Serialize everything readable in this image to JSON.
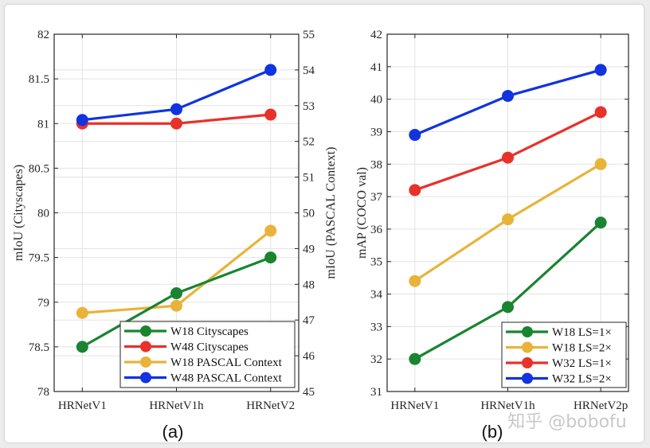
{
  "chart_data": [
    {
      "type": "line",
      "caption": "(a)",
      "categories": [
        "HRNetV1",
        "HRNetV1h",
        "HRNetV2"
      ],
      "ylabel": "mIoU (Cityscapes)",
      "ylim": [
        78,
        82
      ],
      "yticks": [
        "78",
        "78.5",
        "79",
        "79.5",
        "80",
        "80.5",
        "81",
        "81.5",
        "82"
      ],
      "yticks_values": [
        78,
        78.5,
        79,
        79.5,
        80,
        80.5,
        81,
        81.5,
        82
      ],
      "y2label": "mIoU (PASCAL Context)",
      "y2lim": [
        45,
        55
      ],
      "y2ticks": [
        "45",
        "46",
        "47",
        "48",
        "49",
        "50",
        "51",
        "52",
        "53",
        "54",
        "55"
      ],
      "y2ticks_values": [
        45,
        46,
        47,
        48,
        49,
        50,
        51,
        52,
        53,
        54,
        55
      ],
      "grid": true,
      "legend_position": "bottom-right",
      "series": [
        {
          "name": "W18 Cityscapes",
          "axis": "left",
          "color": "#1a8430",
          "values": [
            78.5,
            79.1,
            79.5
          ]
        },
        {
          "name": "W48 Cityscapes",
          "axis": "left",
          "color": "#e8312a",
          "values": [
            81.0,
            81.0,
            81.1
          ]
        },
        {
          "name": "W18 PASCAL Context",
          "axis": "right",
          "color": "#e9b33a",
          "values": [
            47.2,
            47.4,
            49.5
          ]
        },
        {
          "name": "W48 PASCAL Context",
          "axis": "right",
          "color": "#1133e0",
          "values": [
            52.6,
            52.9,
            54.0
          ]
        }
      ]
    },
    {
      "type": "line",
      "caption": "(b)",
      "categories": [
        "HRNetV1",
        "HRNetV1h",
        "HRNetV2p"
      ],
      "ylabel": "mAP (COCO val)",
      "ylim": [
        31,
        42
      ],
      "yticks": [
        "31",
        "32",
        "33",
        "34",
        "35",
        "36",
        "37",
        "38",
        "39",
        "40",
        "41",
        "42"
      ],
      "yticks_values": [
        31,
        32,
        33,
        34,
        35,
        36,
        37,
        38,
        39,
        40,
        41,
        42
      ],
      "grid": true,
      "legend_position": "bottom-right",
      "series": [
        {
          "name": "W18 LS=1×",
          "axis": "left",
          "color": "#1a8430",
          "values": [
            32.0,
            33.6,
            36.2
          ]
        },
        {
          "name": "W18 LS=2×",
          "axis": "left",
          "color": "#e9b33a",
          "values": [
            34.4,
            36.3,
            38.0
          ]
        },
        {
          "name": "W32 LS=1×",
          "axis": "left",
          "color": "#e8312a",
          "values": [
            37.2,
            38.2,
            39.6
          ]
        },
        {
          "name": "W32 LS=2×",
          "axis": "left",
          "color": "#1133e0",
          "values": [
            38.9,
            40.1,
            40.9
          ]
        }
      ]
    }
  ],
  "watermark": "知乎 @bobofu"
}
